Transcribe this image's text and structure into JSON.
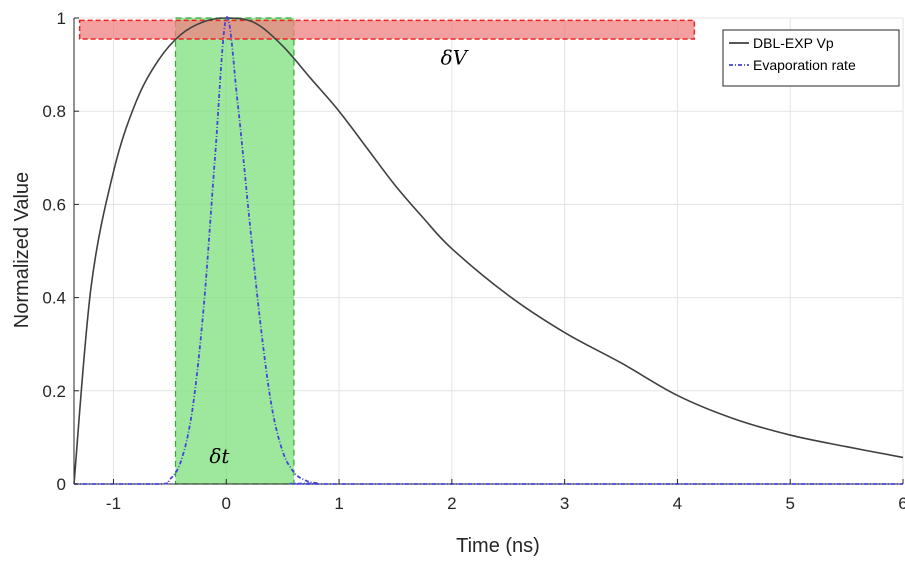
{
  "chart_data": {
    "type": "line",
    "xlabel": "Time (ns)",
    "ylabel": "Normalized Value",
    "xlim": [
      -1.35,
      6
    ],
    "ylim": [
      0,
      1
    ],
    "x_ticks": [
      -1,
      0,
      1,
      2,
      3,
      4,
      5,
      6
    ],
    "y_ticks": [
      0,
      0.2,
      0.4,
      0.6,
      0.8,
      1
    ],
    "x_tick_labels": [
      "-1",
      "0",
      "1",
      "2",
      "3",
      "4",
      "5",
      "6"
    ],
    "y_tick_labels": [
      "0",
      "0.2",
      "0.4",
      "0.6",
      "0.8",
      "1"
    ],
    "grid": true,
    "legend_position": "top-right",
    "series": [
      {
        "name": "DBL-EXP Vp",
        "color": "#404040",
        "style": "solid",
        "x": [
          -1.35,
          -1.2,
          -1.0,
          -0.8,
          -0.6,
          -0.4,
          -0.2,
          0,
          0.25,
          0.5,
          0.75,
          1.0,
          1.25,
          1.5,
          1.75,
          2.0,
          2.5,
          3.0,
          3.5,
          4.0,
          4.5,
          5.0,
          5.5,
          6.0
        ],
        "y": [
          0.0,
          0.42,
          0.67,
          0.82,
          0.91,
          0.965,
          0.992,
          1.0,
          0.99,
          0.94,
          0.87,
          0.8,
          0.72,
          0.64,
          0.57,
          0.505,
          0.405,
          0.325,
          0.26,
          0.19,
          0.14,
          0.105,
          0.08,
          0.057
        ]
      },
      {
        "name": "Evaporation rate",
        "color": "#4444dd",
        "style": "dash-dot",
        "x": [
          -1.35,
          -0.6,
          -0.5,
          -0.4,
          -0.3,
          -0.2,
          -0.1,
          0,
          0.1,
          0.2,
          0.3,
          0.4,
          0.5,
          0.6,
          0.7,
          0.8,
          1.0,
          6.0
        ],
        "y": [
          0,
          0,
          0.01,
          0.05,
          0.16,
          0.38,
          0.7,
          1.0,
          0.82,
          0.58,
          0.35,
          0.17,
          0.07,
          0.025,
          0.008,
          0.002,
          0,
          0
        ]
      }
    ],
    "regions": [
      {
        "kind": "vertical-band",
        "x_from": -0.45,
        "x_to": 0.6,
        "fill": "#7ee07e",
        "edge": "#33aa33"
      },
      {
        "kind": "horizontal-band",
        "x_from": -1.3,
        "x_to": 4.15,
        "y_from": 0.955,
        "y_to": 0.995,
        "fill": "#f08080",
        "edge": "#ee2222"
      }
    ],
    "annotations": [
      {
        "text": "δV",
        "x": 1.9,
        "y": 0.9
      },
      {
        "text": "δt",
        "x": -0.15,
        "y": 0.045
      }
    ]
  }
}
